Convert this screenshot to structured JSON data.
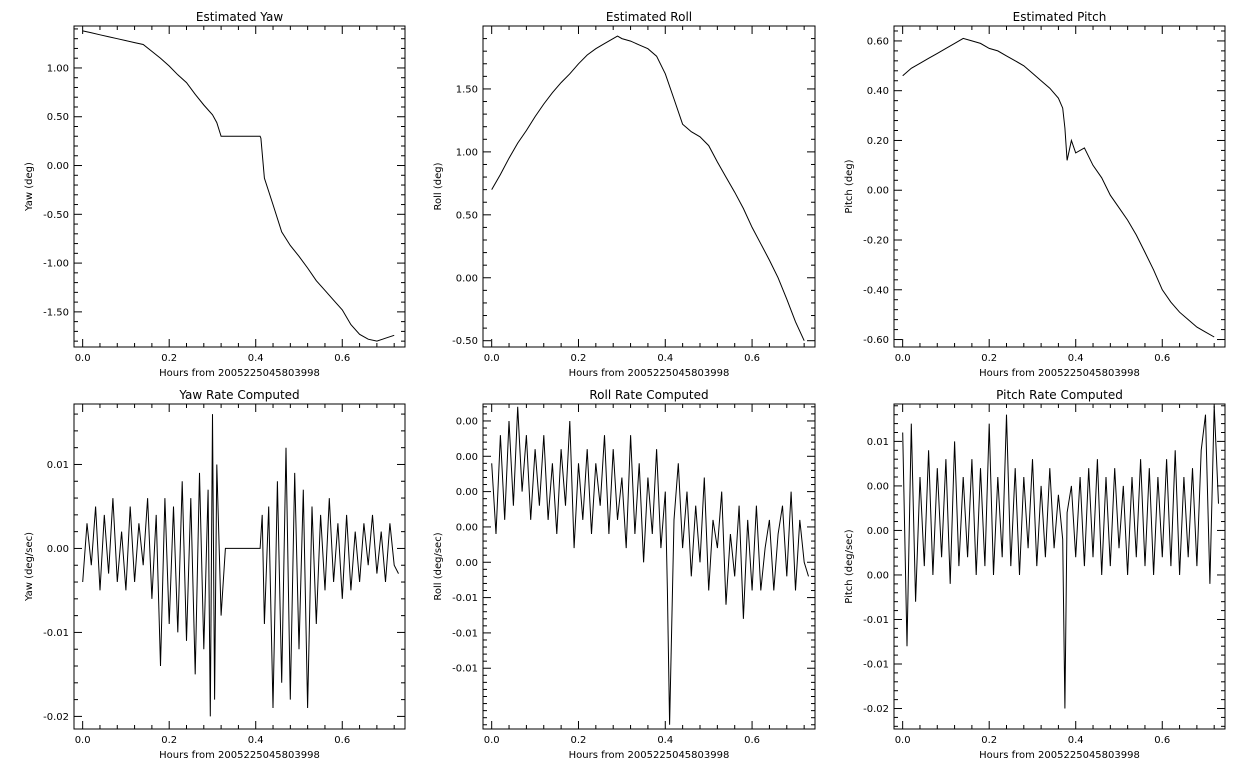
{
  "chart_data": [
    {
      "type": "line",
      "title": "Estimated Yaw",
      "xlabel": "Hours from 2005225045803998",
      "ylabel": "Yaw (deg)",
      "xlim": [
        -0.02,
        0.745
      ],
      "ylim": [
        -1.86,
        1.43
      ],
      "xticks": [
        "0.0",
        "0.2",
        "0.4",
        "0.6"
      ],
      "xtick_values": [
        0.0,
        0.2,
        0.4,
        0.6
      ],
      "yticks": [
        "1.00",
        "0.50",
        "0.00",
        "-0.50",
        "-1.00",
        "-1.50"
      ],
      "ytick_values": [
        1.0,
        0.5,
        0.0,
        -0.5,
        -1.0,
        -1.5
      ],
      "series": [
        {
          "x": [
            0.0,
            0.02,
            0.04,
            0.06,
            0.08,
            0.1,
            0.12,
            0.14,
            0.16,
            0.18,
            0.2,
            0.22,
            0.24,
            0.26,
            0.28,
            0.3,
            0.31,
            0.32,
            0.33,
            0.35,
            0.37,
            0.39,
            0.41,
            0.412,
            0.42,
            0.44,
            0.46,
            0.48,
            0.5,
            0.52,
            0.54,
            0.56,
            0.58,
            0.6,
            0.62,
            0.64,
            0.66,
            0.68,
            0.7,
            0.72
          ],
          "y": [
            1.38,
            1.36,
            1.34,
            1.32,
            1.3,
            1.28,
            1.26,
            1.24,
            1.17,
            1.1,
            1.02,
            0.93,
            0.85,
            0.73,
            0.62,
            0.52,
            0.44,
            0.3,
            0.3,
            0.3,
            0.3,
            0.3,
            0.3,
            0.28,
            -0.13,
            -0.4,
            -0.68,
            -0.82,
            -0.93,
            -1.05,
            -1.18,
            -1.28,
            -1.38,
            -1.48,
            -1.63,
            -1.73,
            -1.78,
            -1.8,
            -1.77,
            -1.74
          ]
        }
      ]
    },
    {
      "type": "line",
      "title": "Estimated Roll",
      "xlabel": "Hours from 2005225045803998",
      "ylabel": "Roll (deg)",
      "xlim": [
        -0.02,
        0.745
      ],
      "ylim": [
        -0.55,
        2.0
      ],
      "xticks": [
        "0.0",
        "0.2",
        "0.4",
        "0.6"
      ],
      "xtick_values": [
        0.0,
        0.2,
        0.4,
        0.6
      ],
      "yticks": [
        "1.50",
        "1.00",
        "0.50",
        "0.00",
        "-0.50"
      ],
      "ytick_values": [
        1.5,
        1.0,
        0.5,
        0.0,
        -0.5
      ],
      "series": [
        {
          "x": [
            0.0,
            0.02,
            0.04,
            0.06,
            0.08,
            0.1,
            0.12,
            0.14,
            0.16,
            0.18,
            0.2,
            0.22,
            0.24,
            0.26,
            0.28,
            0.29,
            0.3,
            0.32,
            0.34,
            0.36,
            0.38,
            0.4,
            0.42,
            0.44,
            0.46,
            0.48,
            0.5,
            0.52,
            0.54,
            0.56,
            0.58,
            0.6,
            0.62,
            0.64,
            0.66,
            0.68,
            0.7,
            0.72
          ],
          "y": [
            0.7,
            0.82,
            0.95,
            1.07,
            1.17,
            1.28,
            1.38,
            1.47,
            1.55,
            1.62,
            1.7,
            1.77,
            1.82,
            1.86,
            1.9,
            1.92,
            1.9,
            1.88,
            1.85,
            1.82,
            1.76,
            1.62,
            1.42,
            1.22,
            1.16,
            1.12,
            1.05,
            0.92,
            0.8,
            0.68,
            0.55,
            0.4,
            0.27,
            0.14,
            0.0,
            -0.17,
            -0.35,
            -0.5
          ]
        }
      ]
    },
    {
      "type": "line",
      "title": "Estimated Pitch",
      "xlabel": "Hours from 2005225045803998",
      "ylabel": "Pitch (deg)",
      "xlim": [
        -0.02,
        0.745
      ],
      "ylim": [
        -0.63,
        0.66
      ],
      "xticks": [
        "0.0",
        "0.2",
        "0.4",
        "0.6"
      ],
      "xtick_values": [
        0.0,
        0.2,
        0.4,
        0.6
      ],
      "yticks": [
        "0.60",
        "0.40",
        "0.20",
        "0.00",
        "-0.20",
        "-0.40",
        "-0.60"
      ],
      "ytick_values": [
        0.6,
        0.4,
        0.2,
        0.0,
        -0.2,
        -0.4,
        -0.6
      ],
      "series": [
        {
          "x": [
            0.0,
            0.02,
            0.04,
            0.06,
            0.08,
            0.1,
            0.12,
            0.14,
            0.16,
            0.18,
            0.2,
            0.22,
            0.24,
            0.26,
            0.28,
            0.3,
            0.32,
            0.34,
            0.36,
            0.37,
            0.375,
            0.38,
            0.39,
            0.4,
            0.42,
            0.44,
            0.46,
            0.48,
            0.5,
            0.52,
            0.54,
            0.56,
            0.58,
            0.6,
            0.62,
            0.64,
            0.66,
            0.68,
            0.7,
            0.72
          ],
          "y": [
            0.46,
            0.49,
            0.51,
            0.53,
            0.55,
            0.57,
            0.59,
            0.61,
            0.6,
            0.59,
            0.57,
            0.56,
            0.54,
            0.52,
            0.5,
            0.47,
            0.44,
            0.41,
            0.37,
            0.33,
            0.25,
            0.12,
            0.2,
            0.15,
            0.17,
            0.1,
            0.05,
            -0.02,
            -0.07,
            -0.12,
            -0.18,
            -0.25,
            -0.32,
            -0.4,
            -0.45,
            -0.49,
            -0.52,
            -0.55,
            -0.57,
            -0.59
          ]
        }
      ]
    },
    {
      "type": "line",
      "title": "Yaw Rate Computed",
      "xlabel": "Hours from 2005225045803998",
      "ylabel": "Yaw (deg/sec)",
      "xlim": [
        -0.02,
        0.745
      ],
      "ylim": [
        -0.0215,
        0.0172
      ],
      "xticks": [
        "0.0",
        "0.2",
        "0.4",
        "0.6"
      ],
      "xtick_values": [
        0.0,
        0.2,
        0.4,
        0.6
      ],
      "yticks": [
        "0.01",
        "0.00",
        "-0.01",
        "-0.02"
      ],
      "ytick_values": [
        0.01,
        0.0,
        -0.01,
        -0.02
      ],
      "series": [
        {
          "x": [
            0.0,
            0.01,
            0.02,
            0.03,
            0.04,
            0.05,
            0.06,
            0.07,
            0.08,
            0.09,
            0.1,
            0.11,
            0.12,
            0.13,
            0.14,
            0.15,
            0.16,
            0.17,
            0.18,
            0.19,
            0.2,
            0.21,
            0.22,
            0.23,
            0.24,
            0.25,
            0.26,
            0.27,
            0.28,
            0.29,
            0.295,
            0.3,
            0.305,
            0.31,
            0.32,
            0.33,
            0.36,
            0.39,
            0.41,
            0.415,
            0.42,
            0.43,
            0.44,
            0.45,
            0.46,
            0.47,
            0.48,
            0.49,
            0.5,
            0.51,
            0.52,
            0.53,
            0.54,
            0.55,
            0.56,
            0.57,
            0.58,
            0.59,
            0.6,
            0.61,
            0.62,
            0.63,
            0.64,
            0.65,
            0.66,
            0.67,
            0.68,
            0.69,
            0.7,
            0.71,
            0.72,
            0.73
          ],
          "y": [
            -0.004,
            0.003,
            -0.002,
            0.005,
            -0.005,
            0.004,
            -0.003,
            0.006,
            -0.004,
            0.002,
            -0.005,
            0.005,
            -0.004,
            0.003,
            -0.002,
            0.006,
            -0.006,
            0.004,
            -0.014,
            0.006,
            -0.009,
            0.005,
            -0.01,
            0.008,
            -0.011,
            0.006,
            -0.015,
            0.009,
            -0.012,
            0.007,
            -0.02,
            0.016,
            -0.018,
            0.01,
            -0.008,
            0.0,
            0.0,
            0.0,
            0.0,
            0.004,
            -0.009,
            0.005,
            -0.019,
            0.008,
            -0.016,
            0.012,
            -0.018,
            0.009,
            -0.012,
            0.007,
            -0.019,
            0.005,
            -0.009,
            0.004,
            -0.005,
            0.006,
            -0.004,
            0.003,
            -0.006,
            0.004,
            -0.005,
            0.002,
            -0.004,
            0.003,
            -0.002,
            0.004,
            -0.003,
            0.002,
            -0.004,
            0.003,
            -0.002,
            -0.003
          ]
        }
      ]
    },
    {
      "type": "line",
      "title": "Roll Rate Computed",
      "xlabel": "Hours from 2005225045803998",
      "ylabel": "Roll (deg/sec)",
      "xlim": [
        -0.02,
        0.745
      ],
      "ylim": [
        -0.0118,
        0.0112
      ],
      "xticks": [
        "0.0",
        "0.2",
        "0.4",
        "0.6"
      ],
      "xtick_values": [
        0.0,
        0.2,
        0.4,
        0.6
      ],
      "yticks": [
        "0.00",
        "0.00",
        "0.00",
        "0.00",
        "0.00",
        "-0.01",
        "-0.01",
        "-0.01"
      ],
      "ytick_values": [
        0.01,
        0.0075,
        0.005,
        0.0025,
        0.0,
        -0.0025,
        -0.005,
        -0.0075
      ],
      "series": [
        {
          "x": [
            0.0,
            0.01,
            0.02,
            0.03,
            0.04,
            0.05,
            0.06,
            0.07,
            0.08,
            0.09,
            0.1,
            0.11,
            0.12,
            0.13,
            0.14,
            0.15,
            0.16,
            0.17,
            0.18,
            0.19,
            0.2,
            0.21,
            0.22,
            0.23,
            0.24,
            0.25,
            0.26,
            0.27,
            0.28,
            0.29,
            0.3,
            0.31,
            0.32,
            0.33,
            0.34,
            0.35,
            0.36,
            0.37,
            0.38,
            0.39,
            0.4,
            0.405,
            0.41,
            0.42,
            0.43,
            0.44,
            0.45,
            0.46,
            0.47,
            0.48,
            0.49,
            0.5,
            0.51,
            0.52,
            0.53,
            0.54,
            0.55,
            0.56,
            0.57,
            0.58,
            0.59,
            0.6,
            0.61,
            0.62,
            0.63,
            0.64,
            0.65,
            0.66,
            0.67,
            0.68,
            0.69,
            0.7,
            0.71,
            0.72,
            0.73
          ],
          "y": [
            0.007,
            0.002,
            0.009,
            0.003,
            0.01,
            0.004,
            0.011,
            0.005,
            0.009,
            0.003,
            0.008,
            0.004,
            0.009,
            0.003,
            0.007,
            0.002,
            0.008,
            0.004,
            0.01,
            0.001,
            0.007,
            0.003,
            0.008,
            0.002,
            0.007,
            0.004,
            0.009,
            0.002,
            0.008,
            0.003,
            0.006,
            0.001,
            0.009,
            0.002,
            0.007,
            0.0,
            0.006,
            0.002,
            0.008,
            0.001,
            0.005,
            -0.002,
            -0.0115,
            0.003,
            0.007,
            0.001,
            0.005,
            -0.001,
            0.004,
            0.0,
            0.006,
            -0.002,
            0.003,
            0.001,
            0.005,
            -0.003,
            0.002,
            -0.001,
            0.004,
            -0.004,
            0.003,
            -0.002,
            0.004,
            -0.002,
            0.001,
            0.003,
            -0.002,
            0.002,
            0.004,
            -0.001,
            0.005,
            -0.002,
            0.003,
            0.0,
            -0.001
          ]
        }
      ]
    },
    {
      "type": "line",
      "title": "Pitch Rate Computed",
      "xlabel": "Hours from 2005225045803998",
      "ylabel": "Pitch (deg/sec)",
      "xlim": [
        -0.02,
        0.745
      ],
      "ylim": [
        -0.0223,
        0.0142
      ],
      "xticks": [
        "0.0",
        "0.2",
        "0.4",
        "0.6"
      ],
      "xtick_values": [
        0.0,
        0.2,
        0.4,
        0.6
      ],
      "yticks": [
        "0.01",
        "0.00",
        "0.00",
        "0.00",
        "-0.01",
        "-0.01",
        "-0.02"
      ],
      "ytick_values": [
        0.01,
        0.005,
        0.0,
        -0.005,
        -0.01,
        -0.015,
        -0.02
      ],
      "series": [
        {
          "x": [
            0.0,
            0.01,
            0.02,
            0.03,
            0.04,
            0.05,
            0.06,
            0.07,
            0.08,
            0.09,
            0.1,
            0.11,
            0.12,
            0.13,
            0.14,
            0.15,
            0.16,
            0.17,
            0.18,
            0.19,
            0.2,
            0.21,
            0.22,
            0.23,
            0.24,
            0.25,
            0.26,
            0.27,
            0.28,
            0.29,
            0.3,
            0.31,
            0.32,
            0.33,
            0.34,
            0.35,
            0.36,
            0.37,
            0.375,
            0.38,
            0.39,
            0.4,
            0.41,
            0.42,
            0.43,
            0.44,
            0.45,
            0.46,
            0.47,
            0.48,
            0.49,
            0.5,
            0.51,
            0.52,
            0.53,
            0.54,
            0.55,
            0.56,
            0.57,
            0.58,
            0.59,
            0.6,
            0.61,
            0.62,
            0.63,
            0.64,
            0.65,
            0.66,
            0.67,
            0.68,
            0.69,
            0.7,
            0.71,
            0.72,
            0.73
          ],
          "y": [
            0.011,
            -0.013,
            0.012,
            -0.008,
            0.006,
            -0.004,
            0.009,
            -0.005,
            0.007,
            -0.003,
            0.008,
            -0.006,
            0.01,
            -0.004,
            0.006,
            -0.003,
            0.008,
            -0.005,
            0.007,
            -0.004,
            0.012,
            -0.005,
            0.006,
            -0.003,
            0.013,
            -0.004,
            0.007,
            -0.005,
            0.006,
            -0.002,
            0.008,
            -0.004,
            0.005,
            -0.003,
            0.007,
            -0.002,
            0.004,
            -0.001,
            -0.02,
            0.002,
            0.005,
            -0.003,
            0.006,
            -0.004,
            0.007,
            -0.003,
            0.008,
            -0.005,
            0.006,
            -0.004,
            0.007,
            -0.002,
            0.005,
            -0.005,
            0.006,
            -0.003,
            0.008,
            -0.004,
            0.007,
            -0.005,
            0.006,
            -0.003,
            0.008,
            -0.004,
            0.009,
            -0.005,
            0.006,
            -0.003,
            0.007,
            -0.004,
            0.009,
            0.013,
            -0.006,
            0.014,
            0.003
          ]
        }
      ]
    }
  ]
}
